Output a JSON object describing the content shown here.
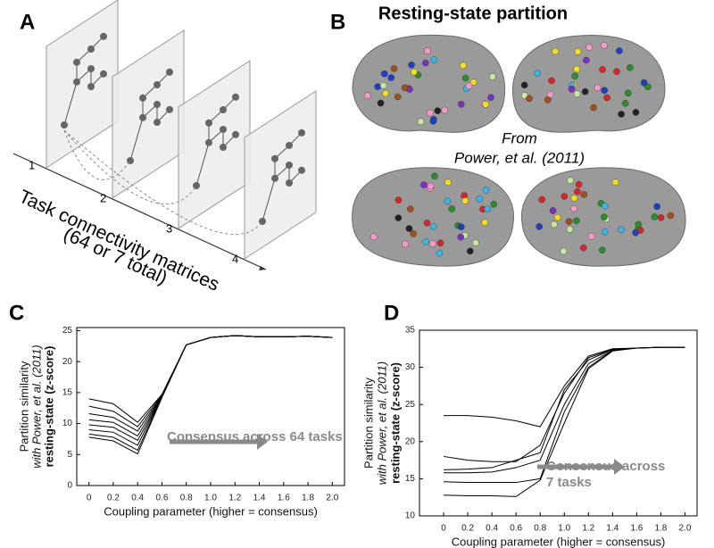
{
  "panel_a": {
    "letter": "A",
    "axis_labels": [
      "1",
      "2",
      "3",
      "4"
    ],
    "caption": [
      "Task connectivity matrices",
      "(64 or 7 total)"
    ]
  },
  "panel_b": {
    "letter": "B",
    "title": "Resting-state partition",
    "source": [
      "From",
      "Power, et al. (2011)"
    ]
  },
  "chart_data": [
    {
      "type": "line",
      "letter": "C",
      "xlabel": "Coupling parameter (higher = consensus)",
      "ylabel": [
        "Partition similarity",
        "with Power, et al. (2011)",
        "resting-state (z-score)"
      ],
      "annotation": [
        "Consensus across 64 tasks"
      ],
      "x": [
        0,
        0.2,
        0.4,
        0.6,
        0.8,
        1.0,
        1.2,
        1.4,
        1.6,
        1.8,
        2.0
      ],
      "xlim": [
        -0.1,
        2.1
      ],
      "ylim": [
        0,
        25.5
      ],
      "xticks": [
        0,
        0.2,
        0.4,
        0.6,
        0.8,
        {
          "value": 1,
          "label": "1.0"
        },
        1.2,
        1.4,
        1.6,
        1.8,
        {
          "value": 2,
          "label": "2.0"
        }
      ],
      "yticks": [
        0,
        5,
        10,
        15,
        20,
        25
      ],
      "series": [
        {
          "color": "#000000",
          "values": [
            14.0,
            13.2,
            10.2,
            14.7,
            22.7,
            23.9,
            24.2,
            24.0,
            24.0,
            24.1,
            23.9
          ]
        },
        {
          "color": "#000000",
          "values": [
            12.8,
            12.0,
            9.5,
            14.6,
            22.7,
            23.9,
            24.2,
            24.0,
            24.0,
            24.1,
            23.9
          ]
        },
        {
          "color": "#000000",
          "values": [
            11.6,
            11.0,
            8.8,
            14.5,
            22.7,
            23.9,
            24.2,
            24.0,
            24.0,
            24.1,
            23.9
          ]
        },
        {
          "color": "#000000",
          "values": [
            10.6,
            10.2,
            8.0,
            14.5,
            22.7,
            23.9,
            24.2,
            24.0,
            24.0,
            24.1,
            23.9
          ]
        },
        {
          "color": "#000000",
          "values": [
            9.8,
            9.4,
            7.3,
            14.4,
            22.7,
            23.9,
            24.2,
            24.0,
            24.0,
            24.1,
            23.9
          ]
        },
        {
          "color": "#000000",
          "values": [
            9.0,
            8.6,
            6.5,
            14.4,
            22.7,
            23.9,
            24.2,
            24.0,
            24.0,
            24.1,
            23.9
          ]
        },
        {
          "color": "#000000",
          "values": [
            8.3,
            7.8,
            5.7,
            14.3,
            22.7,
            23.9,
            24.2,
            24.0,
            24.0,
            24.1,
            23.9
          ]
        },
        {
          "color": "#000000",
          "values": [
            7.8,
            7.2,
            5.1,
            14.2,
            22.7,
            23.9,
            24.2,
            24.0,
            24.0,
            24.1,
            23.9
          ]
        }
      ]
    },
    {
      "type": "line",
      "letter": "D",
      "xlabel": "Coupling parameter (higher = consensus)",
      "ylabel": [
        "Partition similarity",
        "with Power, et al. (2011)",
        "resting-state (z-score)"
      ],
      "annotation": [
        "Consensus across",
        "7 tasks"
      ],
      "x": [
        0,
        0.2,
        0.4,
        0.6,
        0.8,
        1.0,
        1.2,
        1.4,
        1.6,
        1.8,
        2.0
      ],
      "xlim": [
        -0.2,
        2.1
      ],
      "ylim": [
        10,
        35
      ],
      "xticks": [
        0,
        0.2,
        0.4,
        0.6,
        0.8,
        {
          "value": 1,
          "label": "1.0"
        },
        1.2,
        1.4,
        1.6,
        1.8,
        {
          "value": 2,
          "label": "2.0"
        }
      ],
      "yticks": [
        10,
        15,
        20,
        25,
        30,
        35
      ],
      "series": [
        {
          "color": "#000000",
          "values": [
            23.5,
            23.5,
            23.3,
            22.8,
            22.0,
            27.5,
            31.5,
            32.5,
            32.6,
            32.7,
            32.7
          ]
        },
        {
          "color": "#000000",
          "values": [
            18.0,
            17.5,
            17.3,
            17.3,
            19.5,
            26.5,
            31.3,
            32.4,
            32.6,
            32.7,
            32.7
          ]
        },
        {
          "color": "#000000",
          "values": [
            16.2,
            16.3,
            16.5,
            17.5,
            18.5,
            27.0,
            31.0,
            32.4,
            32.6,
            32.7,
            32.7
          ]
        },
        {
          "color": "#000000",
          "values": [
            15.8,
            15.8,
            15.9,
            16.5,
            17.5,
            25.0,
            30.5,
            32.3,
            32.6,
            32.7,
            32.7
          ]
        },
        {
          "color": "#000000",
          "values": [
            14.6,
            14.5,
            14.5,
            14.5,
            15.0,
            24.0,
            30.0,
            32.3,
            32.6,
            32.7,
            32.7
          ]
        },
        {
          "color": "#000000",
          "values": [
            12.8,
            12.7,
            12.7,
            12.6,
            14.8,
            22.5,
            29.8,
            32.2,
            32.6,
            32.7,
            32.7
          ]
        }
      ]
    }
  ]
}
